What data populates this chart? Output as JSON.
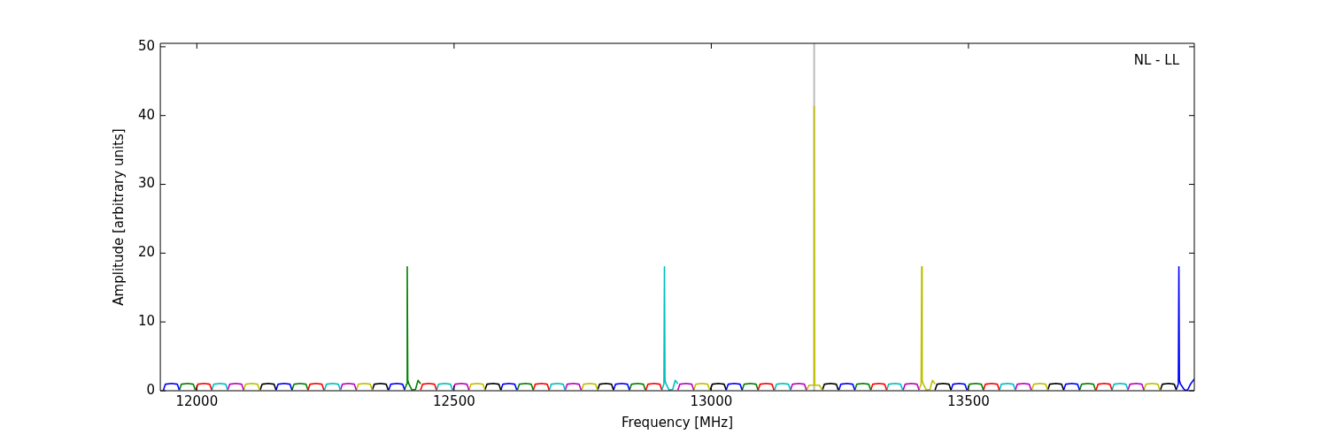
{
  "chart_data": {
    "type": "line",
    "xlabel": "Frequency [MHz]",
    "ylabel": "Amplitude [arbitrary units]",
    "annotations": [
      "NL - LL"
    ],
    "xlim": [
      11929,
      13939
    ],
    "xticks": [
      12000,
      12500,
      13000,
      13500
    ],
    "ylim": [
      0,
      50.5
    ],
    "yticks": [
      0,
      10,
      20,
      30,
      40,
      50
    ],
    "grid": false,
    "marker": "none",
    "line_style": "solid",
    "ref_lines": [
      {
        "axis": "x",
        "value": 13200,
        "color": "#bbbbbb"
      }
    ],
    "series": [
      {
        "color": "#0000ff",
        "x": [
          11935,
          11939,
          11951,
          11962,
          11966
        ],
        "values": [
          0.1,
          0.95,
          1.05,
          0.95,
          0.1
        ]
      },
      {
        "color": "#008000",
        "x": [
          11966,
          11970,
          11982,
          11993,
          11997
        ],
        "values": [
          0.1,
          0.95,
          1.05,
          0.95,
          0.1
        ]
      },
      {
        "color": "#ff0000",
        "x": [
          11998,
          12002,
          12014,
          12025,
          12029
        ],
        "values": [
          0.1,
          0.95,
          1.05,
          0.95,
          0.1
        ]
      },
      {
        "color": "#00bfbf",
        "x": [
          12029,
          12033,
          12045,
          12056,
          12060
        ],
        "values": [
          0.1,
          0.95,
          1.05,
          0.95,
          0.1
        ]
      },
      {
        "color": "#bf00bf",
        "x": [
          12060,
          12064,
          12076,
          12087,
          12091
        ],
        "values": [
          0.1,
          0.95,
          1.05,
          0.95,
          0.1
        ]
      },
      {
        "color": "#bfbf00",
        "x": [
          12091,
          12095,
          12107,
          12118,
          12122
        ],
        "values": [
          0.1,
          0.95,
          1.05,
          0.95,
          0.1
        ]
      },
      {
        "color": "#000000",
        "x": [
          12123,
          12127,
          12139,
          12150,
          12154
        ],
        "values": [
          0.1,
          0.95,
          1.05,
          0.95,
          0.1
        ]
      },
      {
        "color": "#0000ff",
        "x": [
          12154,
          12158,
          12170,
          12181,
          12185
        ],
        "values": [
          0.1,
          0.95,
          1.05,
          0.95,
          0.1
        ]
      },
      {
        "color": "#008000",
        "x": [
          12185,
          12189,
          12201,
          12212,
          12216
        ],
        "values": [
          0.1,
          0.95,
          1.05,
          0.95,
          0.1
        ]
      },
      {
        "color": "#ff0000",
        "x": [
          12216,
          12220,
          12232,
          12243,
          12247
        ],
        "values": [
          0.1,
          0.95,
          1.05,
          0.95,
          0.1
        ]
      },
      {
        "color": "#00bfbf",
        "x": [
          12248,
          12252,
          12264,
          12275,
          12279
        ],
        "values": [
          0.1,
          0.95,
          1.05,
          0.95,
          0.1
        ]
      },
      {
        "color": "#bf00bf",
        "x": [
          12279,
          12283,
          12295,
          12306,
          12310
        ],
        "values": [
          0.1,
          0.95,
          1.05,
          0.95,
          0.1
        ]
      },
      {
        "color": "#bfbf00",
        "x": [
          12310,
          12314,
          12326,
          12337,
          12341
        ],
        "values": [
          0.1,
          0.95,
          1.05,
          0.95,
          0.1
        ]
      },
      {
        "color": "#000000",
        "x": [
          12341,
          12345,
          12357,
          12368,
          12372
        ],
        "values": [
          0.1,
          0.95,
          1.05,
          0.95,
          0.1
        ]
      },
      {
        "color": "#0000ff",
        "x": [
          12373,
          12377,
          12389,
          12400,
          12404
        ],
        "values": [
          0.1,
          0.95,
          1.05,
          0.95,
          0.1
        ]
      },
      {
        "color": "#008000",
        "x": [
          12404,
          12408,
          12409,
          12410,
          12412,
          12418,
          12425,
          12430,
          12435
        ],
        "values": [
          0.2,
          1,
          18,
          1.5,
          1,
          0.1,
          0.2,
          1.5,
          1
        ]
      },
      {
        "color": "#ff0000",
        "x": [
          12435,
          12439,
          12451,
          12462,
          12466
        ],
        "values": [
          0.1,
          0.95,
          1.05,
          0.95,
          0.1
        ]
      },
      {
        "color": "#00bfbf",
        "x": [
          12466,
          12470,
          12482,
          12493,
          12497
        ],
        "values": [
          0.1,
          0.95,
          1.05,
          0.95,
          0.1
        ]
      },
      {
        "color": "#bf00bf",
        "x": [
          12498,
          12502,
          12514,
          12525,
          12529
        ],
        "values": [
          0.1,
          0.95,
          1.05,
          0.95,
          0.1
        ]
      },
      {
        "color": "#bfbf00",
        "x": [
          12529,
          12533,
          12545,
          12556,
          12560
        ],
        "values": [
          0.1,
          0.95,
          1.05,
          0.95,
          0.1
        ]
      },
      {
        "color": "#000000",
        "x": [
          12560,
          12564,
          12576,
          12587,
          12591
        ],
        "values": [
          0.1,
          0.95,
          1.05,
          0.95,
          0.1
        ]
      },
      {
        "color": "#0000ff",
        "x": [
          12591,
          12595,
          12607,
          12618,
          12622
        ],
        "values": [
          0.1,
          0.95,
          1.05,
          0.95,
          0.1
        ]
      },
      {
        "color": "#008000",
        "x": [
          12623,
          12627,
          12639,
          12650,
          12654
        ],
        "values": [
          0.1,
          0.95,
          1.05,
          0.95,
          0.1
        ]
      },
      {
        "color": "#ff0000",
        "x": [
          12654,
          12658,
          12670,
          12681,
          12685
        ],
        "values": [
          0.1,
          0.95,
          1.05,
          0.95,
          0.1
        ]
      },
      {
        "color": "#00bfbf",
        "x": [
          12685,
          12689,
          12701,
          12712,
          12716
        ],
        "values": [
          0.1,
          0.95,
          1.05,
          0.95,
          0.1
        ]
      },
      {
        "color": "#bf00bf",
        "x": [
          12716,
          12720,
          12732,
          12743,
          12747
        ],
        "values": [
          0.1,
          0.95,
          1.05,
          0.95,
          0.1
        ]
      },
      {
        "color": "#bfbf00",
        "x": [
          12748,
          12752,
          12764,
          12775,
          12779
        ],
        "values": [
          0.1,
          0.95,
          1.05,
          0.95,
          0.1
        ]
      },
      {
        "color": "#000000",
        "x": [
          12779,
          12783,
          12795,
          12806,
          12810
        ],
        "values": [
          0.1,
          0.95,
          1.05,
          0.95,
          0.1
        ]
      },
      {
        "color": "#0000ff",
        "x": [
          12810,
          12814,
          12826,
          12837,
          12841
        ],
        "values": [
          0.1,
          0.95,
          1.05,
          0.95,
          0.1
        ]
      },
      {
        "color": "#008000",
        "x": [
          12841,
          12845,
          12857,
          12868,
          12872
        ],
        "values": [
          0.1,
          0.95,
          1.05,
          0.95,
          0.1
        ]
      },
      {
        "color": "#ff0000",
        "x": [
          12873,
          12877,
          12889,
          12900,
          12904
        ],
        "values": [
          0.1,
          0.95,
          1.05,
          0.95,
          0.1
        ]
      },
      {
        "color": "#00bfbf",
        "x": [
          12904,
          12908,
          12909,
          12910,
          12912,
          12918,
          12925,
          12930,
          12935
        ],
        "values": [
          0.2,
          1,
          18,
          1.5,
          1,
          0.1,
          0.2,
          1.5,
          1
        ]
      },
      {
        "color": "#bf00bf",
        "x": [
          12935,
          12939,
          12951,
          12962,
          12966
        ],
        "values": [
          0.1,
          0.95,
          1.05,
          0.95,
          0.1
        ]
      },
      {
        "color": "#bfbf00",
        "x": [
          12966,
          12970,
          12982,
          12993,
          12997
        ],
        "values": [
          0.1,
          0.95,
          1.05,
          0.95,
          0.1
        ]
      },
      {
        "color": "#000000",
        "x": [
          12998,
          13002,
          13014,
          13025,
          13029
        ],
        "values": [
          0.1,
          0.95,
          1.05,
          0.95,
          0.1
        ]
      },
      {
        "color": "#0000ff",
        "x": [
          13029,
          13033,
          13045,
          13056,
          13060
        ],
        "values": [
          0.1,
          0.95,
          1.05,
          0.95,
          0.1
        ]
      },
      {
        "color": "#008000",
        "x": [
          13060,
          13064,
          13076,
          13087,
          13091
        ],
        "values": [
          0.1,
          0.95,
          1.05,
          0.95,
          0.1
        ]
      },
      {
        "color": "#ff0000",
        "x": [
          13091,
          13095,
          13107,
          13118,
          13122
        ],
        "values": [
          0.1,
          0.95,
          1.05,
          0.95,
          0.1
        ]
      },
      {
        "color": "#00bfbf",
        "x": [
          13123,
          13127,
          13139,
          13150,
          13154
        ],
        "values": [
          0.1,
          0.95,
          1.05,
          0.95,
          0.1
        ]
      },
      {
        "color": "#bf00bf",
        "x": [
          13154,
          13158,
          13170,
          13181,
          13185
        ],
        "values": [
          0.1,
          0.95,
          1.05,
          0.95,
          0.1
        ]
      },
      {
        "color": "#bfbf00",
        "x": [
          13185,
          13190,
          13199,
          13200,
          13201,
          13210,
          13216
        ],
        "values": [
          0.1,
          0.8,
          0.8,
          41.3,
          0.8,
          0.8,
          0.1
        ]
      },
      {
        "color": "#000000",
        "x": [
          13216,
          13220,
          13232,
          13243,
          13247
        ],
        "values": [
          0.1,
          0.95,
          1.05,
          0.95,
          0.1
        ]
      },
      {
        "color": "#0000ff",
        "x": [
          13248,
          13252,
          13264,
          13275,
          13279
        ],
        "values": [
          0.1,
          0.95,
          1.05,
          0.95,
          0.1
        ]
      },
      {
        "color": "#008000",
        "x": [
          13279,
          13283,
          13295,
          13306,
          13310
        ],
        "values": [
          0.1,
          0.95,
          1.05,
          0.95,
          0.1
        ]
      },
      {
        "color": "#ff0000",
        "x": [
          13310,
          13314,
          13326,
          13337,
          13341
        ],
        "values": [
          0.1,
          0.95,
          1.05,
          0.95,
          0.1
        ]
      },
      {
        "color": "#00bfbf",
        "x": [
          13341,
          13345,
          13357,
          13368,
          13372
        ],
        "values": [
          0.1,
          0.95,
          1.05,
          0.95,
          0.1
        ]
      },
      {
        "color": "#bf00bf",
        "x": [
          13373,
          13377,
          13389,
          13400,
          13404
        ],
        "values": [
          0.1,
          0.95,
          1.05,
          0.95,
          0.1
        ]
      },
      {
        "color": "#bfbf00",
        "x": [
          13404,
          13408,
          13409,
          13410,
          13412,
          13418,
          13425,
          13430,
          13435
        ],
        "values": [
          0.2,
          1,
          18,
          1.5,
          1,
          0.1,
          0.2,
          1.5,
          1
        ]
      },
      {
        "color": "#000000",
        "x": [
          13435,
          13439,
          13451,
          13462,
          13466
        ],
        "values": [
          0.1,
          0.95,
          1.05,
          0.95,
          0.1
        ]
      },
      {
        "color": "#0000ff",
        "x": [
          13466,
          13470,
          13482,
          13493,
          13497
        ],
        "values": [
          0.1,
          0.95,
          1.05,
          0.95,
          0.1
        ]
      },
      {
        "color": "#008000",
        "x": [
          13498,
          13502,
          13514,
          13525,
          13529
        ],
        "values": [
          0.1,
          0.95,
          1.05,
          0.95,
          0.1
        ]
      },
      {
        "color": "#ff0000",
        "x": [
          13529,
          13533,
          13545,
          13556,
          13560
        ],
        "values": [
          0.1,
          0.95,
          1.05,
          0.95,
          0.1
        ]
      },
      {
        "color": "#00bfbf",
        "x": [
          13560,
          13564,
          13576,
          13587,
          13591
        ],
        "values": [
          0.1,
          0.95,
          1.05,
          0.95,
          0.1
        ]
      },
      {
        "color": "#bf00bf",
        "x": [
          13591,
          13595,
          13607,
          13618,
          13622
        ],
        "values": [
          0.1,
          0.95,
          1.05,
          0.95,
          0.1
        ]
      },
      {
        "color": "#bfbf00",
        "x": [
          13623,
          13627,
          13639,
          13650,
          13654
        ],
        "values": [
          0.1,
          0.95,
          1.05,
          0.95,
          0.1
        ]
      },
      {
        "color": "#000000",
        "x": [
          13654,
          13658,
          13670,
          13681,
          13685
        ],
        "values": [
          0.1,
          0.95,
          1.05,
          0.95,
          0.1
        ]
      },
      {
        "color": "#0000ff",
        "x": [
          13685,
          13689,
          13701,
          13712,
          13716
        ],
        "values": [
          0.1,
          0.95,
          1.05,
          0.95,
          0.1
        ]
      },
      {
        "color": "#008000",
        "x": [
          13716,
          13720,
          13732,
          13743,
          13747
        ],
        "values": [
          0.1,
          0.95,
          1.05,
          0.95,
          0.1
        ]
      },
      {
        "color": "#ff0000",
        "x": [
          13748,
          13752,
          13764,
          13775,
          13779
        ],
        "values": [
          0.1,
          0.95,
          1.05,
          0.95,
          0.1
        ]
      },
      {
        "color": "#00bfbf",
        "x": [
          13779,
          13783,
          13795,
          13806,
          13810
        ],
        "values": [
          0.1,
          0.95,
          1.05,
          0.95,
          0.1
        ]
      },
      {
        "color": "#bf00bf",
        "x": [
          13810,
          13814,
          13826,
          13837,
          13841
        ],
        "values": [
          0.1,
          0.95,
          1.05,
          0.95,
          0.1
        ]
      },
      {
        "color": "#bfbf00",
        "x": [
          13841,
          13845,
          13857,
          13868,
          13872
        ],
        "values": [
          0.1,
          0.95,
          1.05,
          0.95,
          0.1
        ]
      },
      {
        "color": "#000000",
        "x": [
          13873,
          13877,
          13889,
          13900,
          13904
        ],
        "values": [
          0.1,
          0.95,
          1.05,
          0.95,
          0.1
        ]
      },
      {
        "color": "#0000ff",
        "x": [
          13904,
          13908,
          13909,
          13910,
          13912,
          13920,
          13926,
          13932,
          13939
        ],
        "values": [
          0.2,
          1,
          18,
          1.5,
          1,
          0.1,
          0.1,
          1,
          1.7
        ]
      }
    ]
  }
}
